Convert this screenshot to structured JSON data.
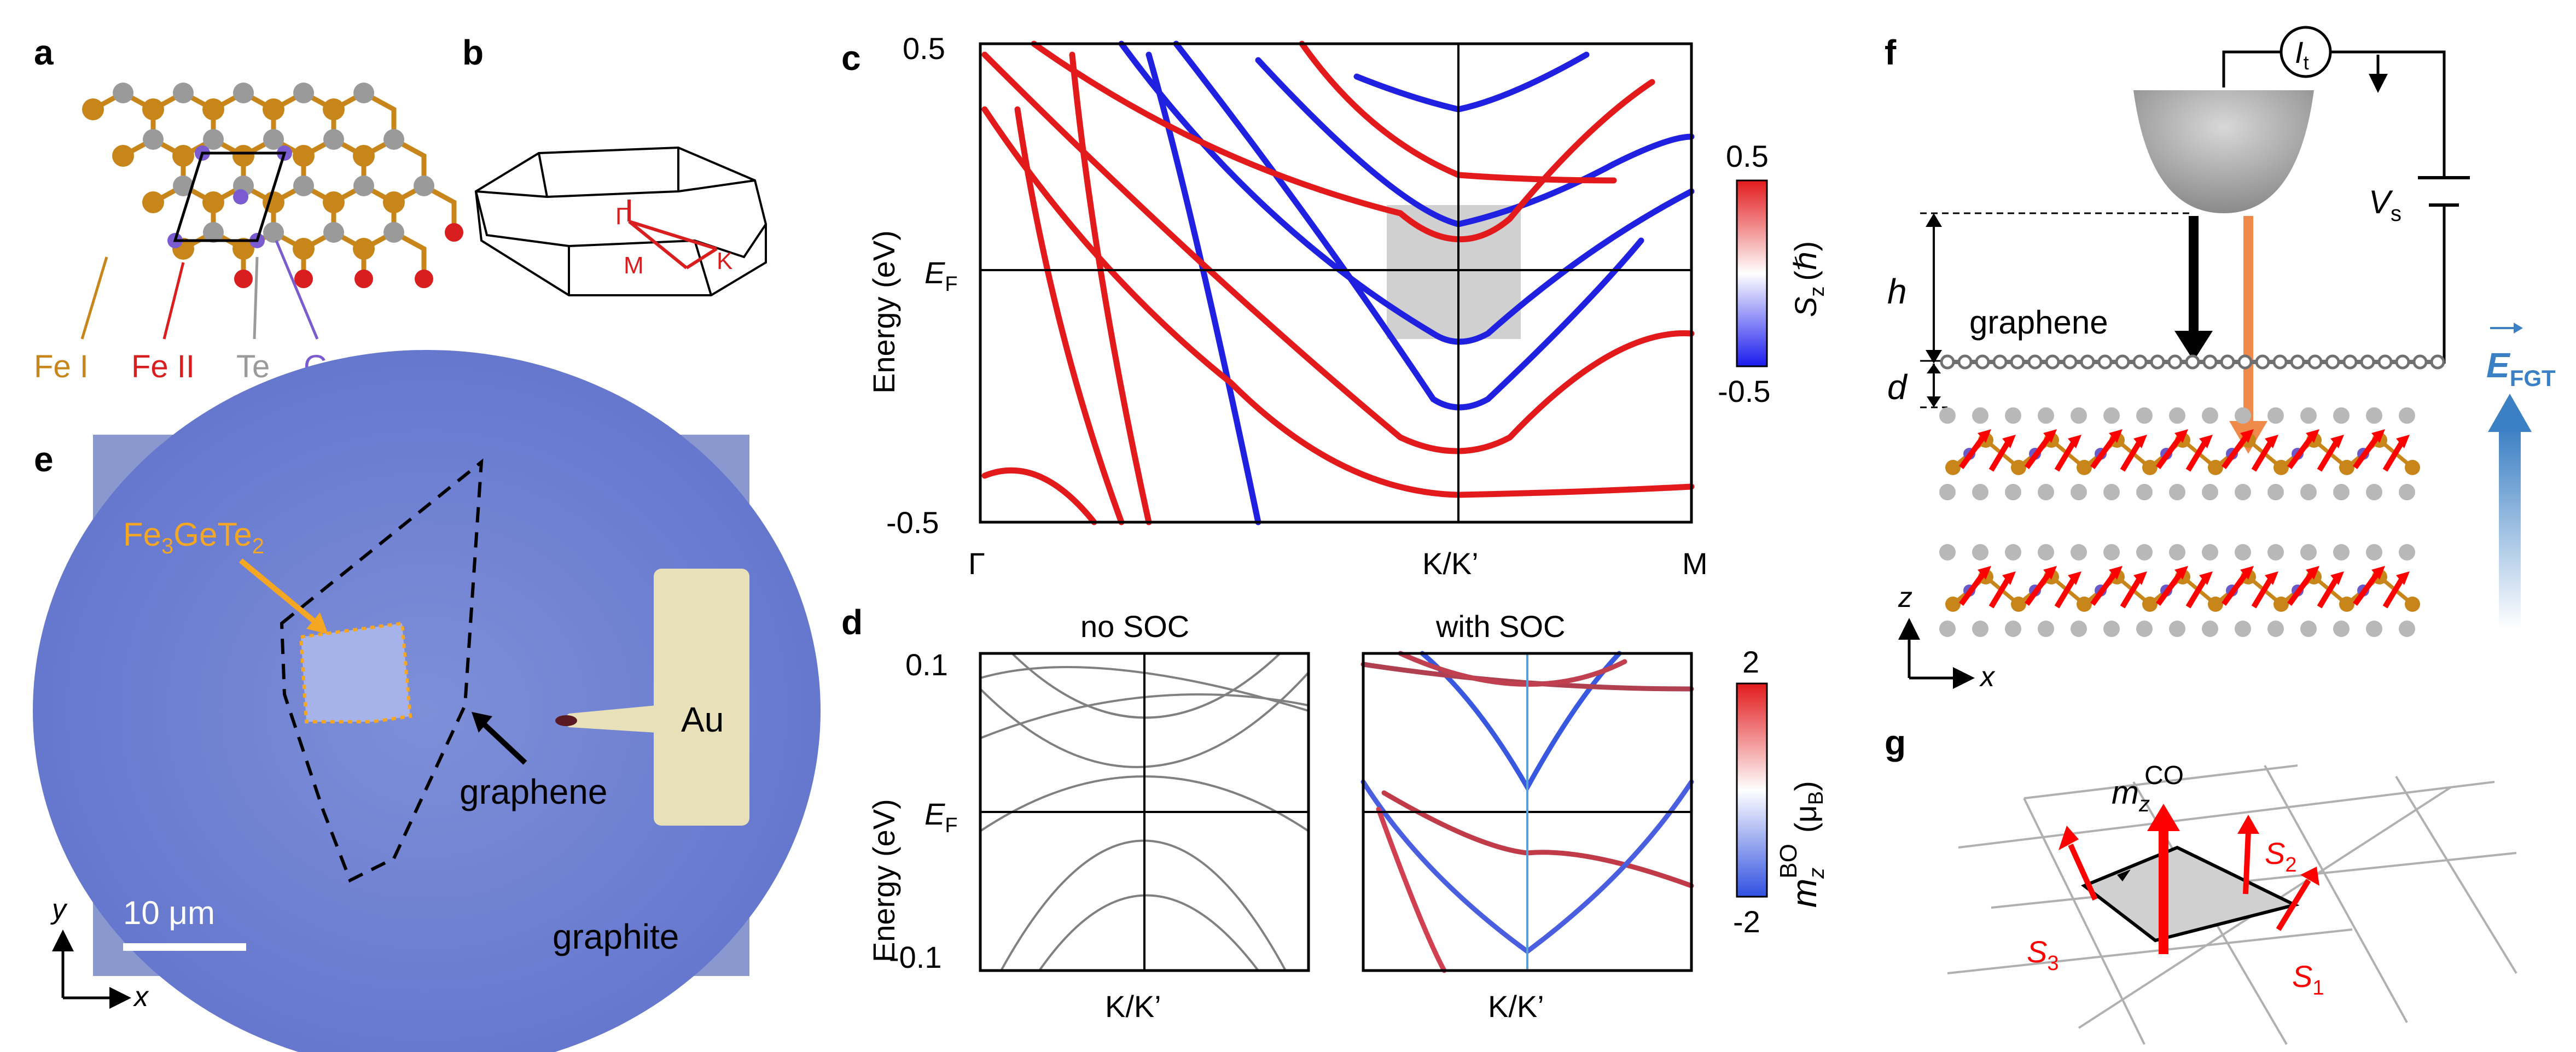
{
  "panels": {
    "a": "a",
    "b": "b",
    "c": "c",
    "d": "d",
    "e": "e",
    "f": "f",
    "g": "g"
  },
  "panel_a": {
    "legend": [
      "Fe I",
      "Fe II",
      "Te",
      "Ge"
    ],
    "colors": [
      "#c8861a",
      "#d81e1e",
      "#9a9a9a",
      "#7b5bd0"
    ]
  },
  "panel_b": {
    "points": [
      "Γ",
      "M",
      "K"
    ]
  },
  "panel_c": {
    "ylabel": "Energy (eV)",
    "ef_label": "E",
    "ef_sub": "F",
    "yticks": [
      "0.5",
      "-0.5"
    ],
    "xticks": [
      "Γ",
      "K/K’",
      "M"
    ],
    "colorbar_ticks": [
      "0.5",
      "-0.5"
    ],
    "colorbar_label": "S",
    "colorbar_sub": "z",
    "colorbar_unit": "(ℏ)"
  },
  "panel_d": {
    "title_left": "no SOC",
    "title_right": "with SOC",
    "ylabel": "Energy (eV)",
    "yticks": [
      "0.1",
      "-0.1"
    ],
    "ef_label": "E",
    "ef_sub": "F",
    "xtick": "K/K’",
    "colorbar_ticks": [
      "2",
      "-2"
    ],
    "colorbar_label": "m",
    "colorbar_sup": "BO",
    "colorbar_sub": "z",
    "colorbar_unit": "(μ",
    "colorbar_unit_sub": "B",
    "colorbar_unit_end": ")"
  },
  "panel_e": {
    "flake_label": "Fe",
    "flake_sub1": "3",
    "flake_mid": "GeTe",
    "flake_sub2": "2",
    "graphene": "graphene",
    "au": "Au",
    "graphite": "graphite",
    "scale": "10 μm",
    "axis_y": "y",
    "axis_x": "x"
  },
  "panel_f": {
    "current": "I",
    "current_sub": "t",
    "voltage": "V",
    "voltage_sub": "s",
    "h": "h",
    "d": "d",
    "graphene": "graphene",
    "field": "E",
    "field_sub": "FGT",
    "axis_z": "z",
    "axis_x": "x"
  },
  "panel_g": {
    "m_label": "m",
    "m_sub": "z",
    "m_sup": "CO",
    "s1": "S",
    "s1_sub": "1",
    "s2": "S",
    "s2_sub": "2",
    "s3": "S",
    "s3_sub": "3"
  }
}
